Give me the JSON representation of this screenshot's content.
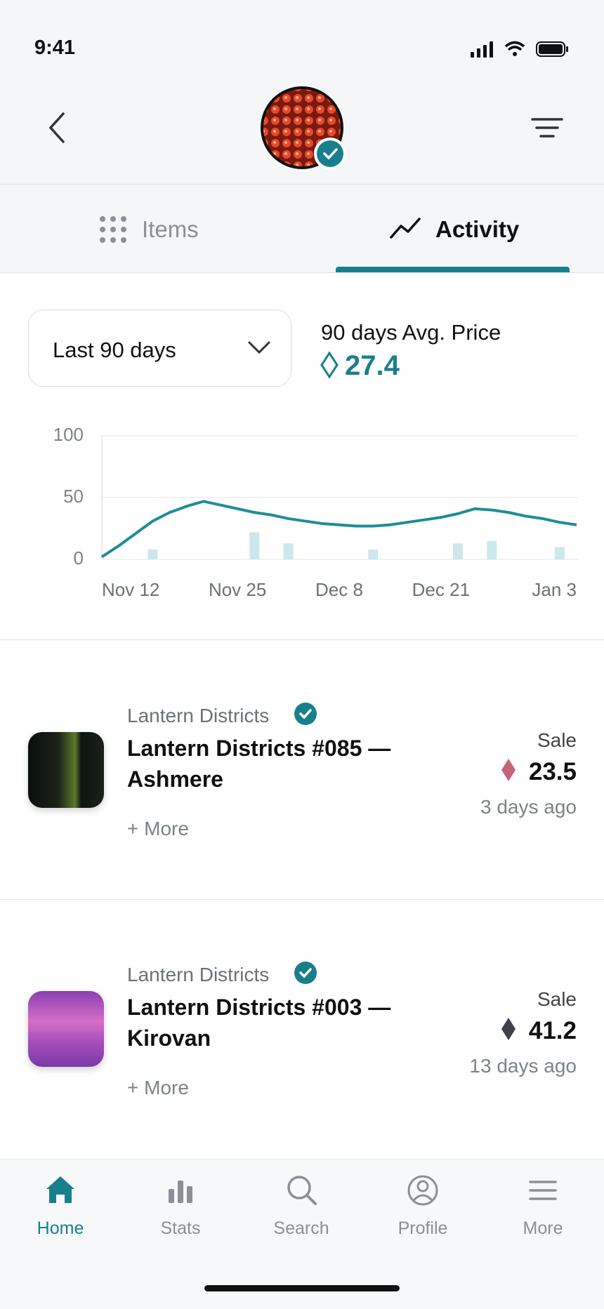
{
  "status_bar": {
    "time": "9:41"
  },
  "tabs": [
    {
      "label": "Items",
      "active": false
    },
    {
      "label": "Activity",
      "active": true
    }
  ],
  "filter": {
    "period": "Last 90 days"
  },
  "summary": {
    "label": "90 days Avg. Price",
    "value": 27.4
  },
  "chart": {
    "type": "line",
    "categories": [
      "Nov 12",
      null,
      null,
      null,
      null,
      null,
      null,
      null,
      "Nov 25",
      null,
      null,
      null,
      null,
      null,
      "Dec 8",
      null,
      null,
      null,
      null,
      null,
      "Dec 21",
      null,
      null,
      null,
      null,
      null,
      null,
      null,
      "Jan 3"
    ],
    "series": [
      {
        "type": "line",
        "color": "#1f8d98",
        "values": [
          2,
          11,
          21,
          31,
          38,
          43,
          47,
          44,
          41,
          38,
          36,
          33,
          31,
          29,
          28,
          27,
          27,
          28,
          30,
          32,
          34,
          37,
          41,
          40,
          38,
          35,
          33,
          30,
          28
        ]
      },
      {
        "type": "bar",
        "color": "#cde8ec",
        "values": [
          null,
          null,
          null,
          8,
          null,
          null,
          null,
          null,
          null,
          22,
          null,
          13,
          null,
          null,
          null,
          null,
          8,
          null,
          null,
          null,
          null,
          13,
          null,
          15,
          null,
          null,
          null,
          10,
          null
        ]
      }
    ],
    "ylim": [
      0,
      100
    ],
    "yticks": [
      0,
      50,
      100
    ],
    "grid": true
  },
  "activity": [
    {
      "collection": "Lantern Districts",
      "title": "Lantern Districts #085 — Ashmere",
      "more": "+ More",
      "event": "Sale",
      "price": 23.5,
      "price_color": "#c4637c",
      "time": "3 days ago"
    },
    {
      "collection": "Lantern Districts",
      "title": "Lantern Districts #003 — Kirovan",
      "more": "+ More",
      "event": "Sale",
      "price": 41.2,
      "price_color": "#3d424b",
      "time": "13 days ago"
    }
  ],
  "nav": [
    {
      "label": "Home",
      "active": true
    },
    {
      "label": "Stats",
      "active": false
    },
    {
      "label": "Search",
      "active": false
    },
    {
      "label": "Profile",
      "active": false
    },
    {
      "label": "More",
      "active": false
    }
  ]
}
